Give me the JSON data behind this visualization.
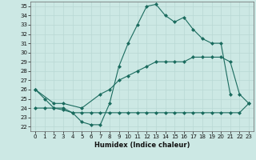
{
  "xlabel": "Humidex (Indice chaleur)",
  "bg_color": "#cce8e4",
  "line_color": "#1a6b5e",
  "grid_color": "#b8d8d4",
  "xlim": [
    -0.5,
    23.5
  ],
  "ylim": [
    21.5,
    35.5
  ],
  "xticks": [
    0,
    1,
    2,
    3,
    4,
    5,
    6,
    7,
    8,
    9,
    10,
    11,
    12,
    13,
    14,
    15,
    16,
    17,
    18,
    19,
    20,
    21,
    22,
    23
  ],
  "yticks": [
    22,
    23,
    24,
    25,
    26,
    27,
    28,
    29,
    30,
    31,
    32,
    33,
    34,
    35
  ],
  "line1_x": [
    0,
    1,
    2,
    3,
    4,
    5,
    6,
    7,
    8,
    9,
    10,
    11,
    12,
    13,
    14,
    15,
    16,
    17,
    18,
    19,
    20,
    21
  ],
  "line1_y": [
    26,
    25,
    24,
    24,
    23.5,
    22.5,
    22.2,
    22.2,
    24.5,
    28.5,
    31,
    33,
    35,
    35.2,
    34,
    33.3,
    33.8,
    32.5,
    31.5,
    31,
    31,
    25.5
  ],
  "line2_x": [
    0,
    1,
    2,
    3,
    4,
    5,
    6,
    7,
    8,
    9,
    10,
    11,
    12,
    13,
    14,
    15,
    16,
    17,
    18,
    19,
    20,
    21,
    22,
    23
  ],
  "line2_y": [
    24,
    24,
    24,
    23.8,
    23.5,
    23.5,
    23.5,
    23.5,
    23.5,
    23.5,
    23.5,
    23.5,
    23.5,
    23.5,
    23.5,
    23.5,
    23.5,
    23.5,
    23.5,
    23.5,
    23.5,
    23.5,
    23.5,
    24.5
  ],
  "line3_x": [
    0,
    2,
    3,
    5,
    7,
    8,
    9,
    10,
    11,
    12,
    13,
    14,
    15,
    16,
    17,
    18,
    19,
    20,
    21,
    22,
    23
  ],
  "line3_y": [
    26,
    24.5,
    24.5,
    24,
    25.5,
    26,
    27,
    27.5,
    28,
    28.5,
    29,
    29,
    29,
    29,
    29.5,
    29.5,
    29.5,
    29.5,
    29,
    25.5,
    24.5
  ],
  "markersize": 2.5
}
